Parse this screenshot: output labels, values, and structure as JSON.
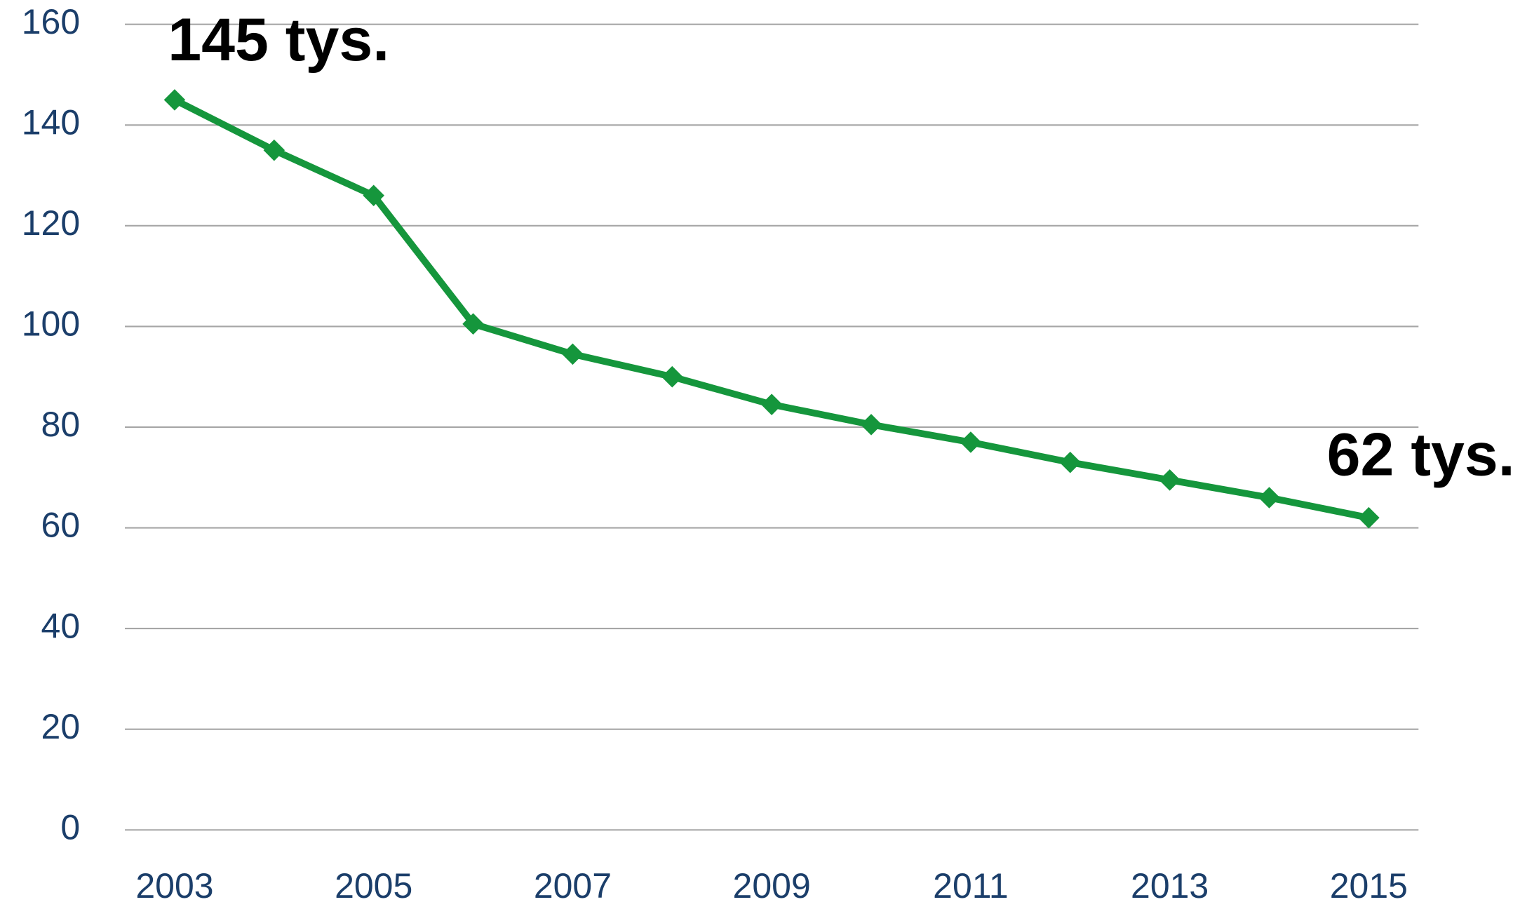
{
  "chart_data": {
    "type": "line",
    "x": [
      2003,
      2004,
      2005,
      2006,
      2007,
      2008,
      2009,
      2010,
      2011,
      2012,
      2013,
      2014,
      2015
    ],
    "series": [
      {
        "color": "#15963c",
        "values": [
          145,
          135,
          126,
          100.5,
          94.5,
          90,
          84.5,
          80.5,
          77,
          73,
          69.5,
          66,
          62
        ],
        "value_labels": [
          "145 tys.",
          null,
          null,
          null,
          null,
          null,
          null,
          null,
          null,
          null,
          null,
          null,
          "62 tys."
        ]
      }
    ],
    "xlim": [
      2002.5,
      2015.5
    ],
    "xticks": [
      2003,
      2005,
      2007,
      2009,
      2011,
      2013,
      2015
    ],
    "ylim": [
      0,
      160
    ],
    "yticks": [
      0,
      20,
      40,
      60,
      80,
      100,
      120,
      140,
      160
    ],
    "grid": true
  }
}
